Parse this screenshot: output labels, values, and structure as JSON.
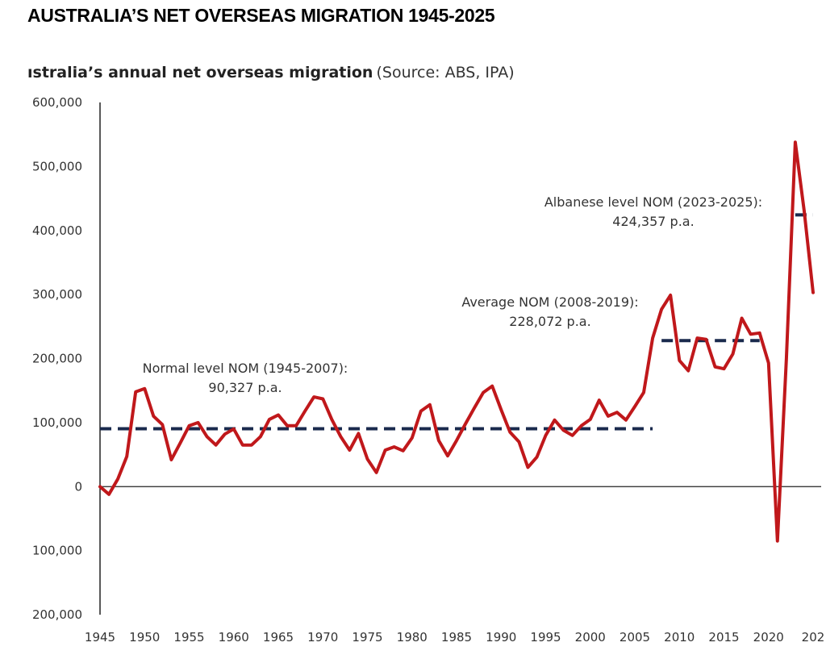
{
  "headline": "AUSTRALIA’S NET OVERSEAS MIGRATION 1945-2025",
  "subtitle": {
    "strong": "ıstralia’s annual net overseas migration",
    "light": " (Source: ABS, IPA)"
  },
  "colors": {
    "series": "#c0181b",
    "reference": "#1a2a4d",
    "axis": "#222222"
  },
  "chart_data": {
    "type": "line",
    "title": "ıstralia’s annual net overseas migration (Source: ABS, IPA)",
    "xlabel": "",
    "ylabel": "",
    "xlim": [
      1945,
      2025
    ],
    "ylim": [
      -200000,
      600000
    ],
    "grid": false,
    "x_ticks": [
      "1945",
      "1950",
      "1955",
      "1960",
      "1965",
      "1970",
      "1975",
      "1980",
      "1985",
      "1990",
      "1995",
      "2000",
      "2005",
      "2010",
      "2015",
      "2020",
      "202"
    ],
    "y_ticks": [
      {
        "value": 600000,
        "label": "600,000"
      },
      {
        "value": 500000,
        "label": "500,000"
      },
      {
        "value": 400000,
        "label": "400,000"
      },
      {
        "value": 300000,
        "label": "300,000"
      },
      {
        "value": 200000,
        "label": "200,000"
      },
      {
        "value": 100000,
        "label": "100,000"
      },
      {
        "value": 0,
        "label": "0"
      },
      {
        "value": -100000,
        "label": "100,000"
      },
      {
        "value": -200000,
        "label": "200,000"
      }
    ],
    "series": [
      {
        "x": [
          1945,
          1946,
          1947,
          1948,
          1949,
          1950,
          1951,
          1952,
          1953,
          1954,
          1955,
          1956,
          1957,
          1958,
          1959,
          1960,
          1961,
          1962,
          1963,
          1964,
          1965,
          1966,
          1967,
          1968,
          1969,
          1970,
          1971,
          1972,
          1973,
          1974,
          1975,
          1976,
          1977,
          1978,
          1979,
          1980,
          1981,
          1982,
          1983,
          1984,
          1985,
          1986,
          1987,
          1988,
          1989,
          1990,
          1991,
          1992,
          1993,
          1994,
          1995,
          1996,
          1997,
          1998,
          1999,
          2000,
          2001,
          2002,
          2003,
          2004,
          2005,
          2006,
          2007,
          2008,
          2009,
          2010,
          2011,
          2012,
          2013,
          2014,
          2015,
          2016,
          2017,
          2018,
          2019,
          2020,
          2021,
          2022,
          2023,
          2024,
          2025
        ],
        "values": [
          0,
          -12000,
          12000,
          47000,
          148000,
          153000,
          110000,
          97000,
          42000,
          68000,
          95000,
          100000,
          78000,
          65000,
          82000,
          90000,
          65000,
          65000,
          78000,
          105000,
          112000,
          95000,
          95000,
          118000,
          140000,
          137000,
          105000,
          78000,
          57000,
          83000,
          43000,
          22000,
          57000,
          62000,
          56000,
          76000,
          118000,
          128000,
          72000,
          48000,
          72000,
          98000,
          123000,
          147000,
          157000,
          120000,
          85000,
          70000,
          30000,
          46000,
          80000,
          104000,
          88000,
          80000,
          95000,
          105000,
          135000,
          110000,
          116000,
          104000,
          125000,
          147000,
          232000,
          277000,
          299000,
          197000,
          181000,
          232000,
          230000,
          187000,
          184000,
          207000,
          263000,
          238000,
          240000,
          193000,
          -85000,
          200000,
          538000,
          430000,
          303000
        ]
      }
    ],
    "reference_lines": [
      {
        "name": "Normal level NOM (1945-2007)",
        "value_label": "90,327 p.a.",
        "value": 90327,
        "x_range": [
          1945,
          2007
        ]
      },
      {
        "name": "Average NOM (2008-2019)",
        "value_label": "228,072 p.a.",
        "value": 228072,
        "x_range": [
          2008,
          2019
        ]
      },
      {
        "name": "Albanese level NOM (2023-2025)",
        "value_label": "424,357 p.a.",
        "value": 424357,
        "x_range": [
          2023,
          2025
        ]
      }
    ]
  }
}
